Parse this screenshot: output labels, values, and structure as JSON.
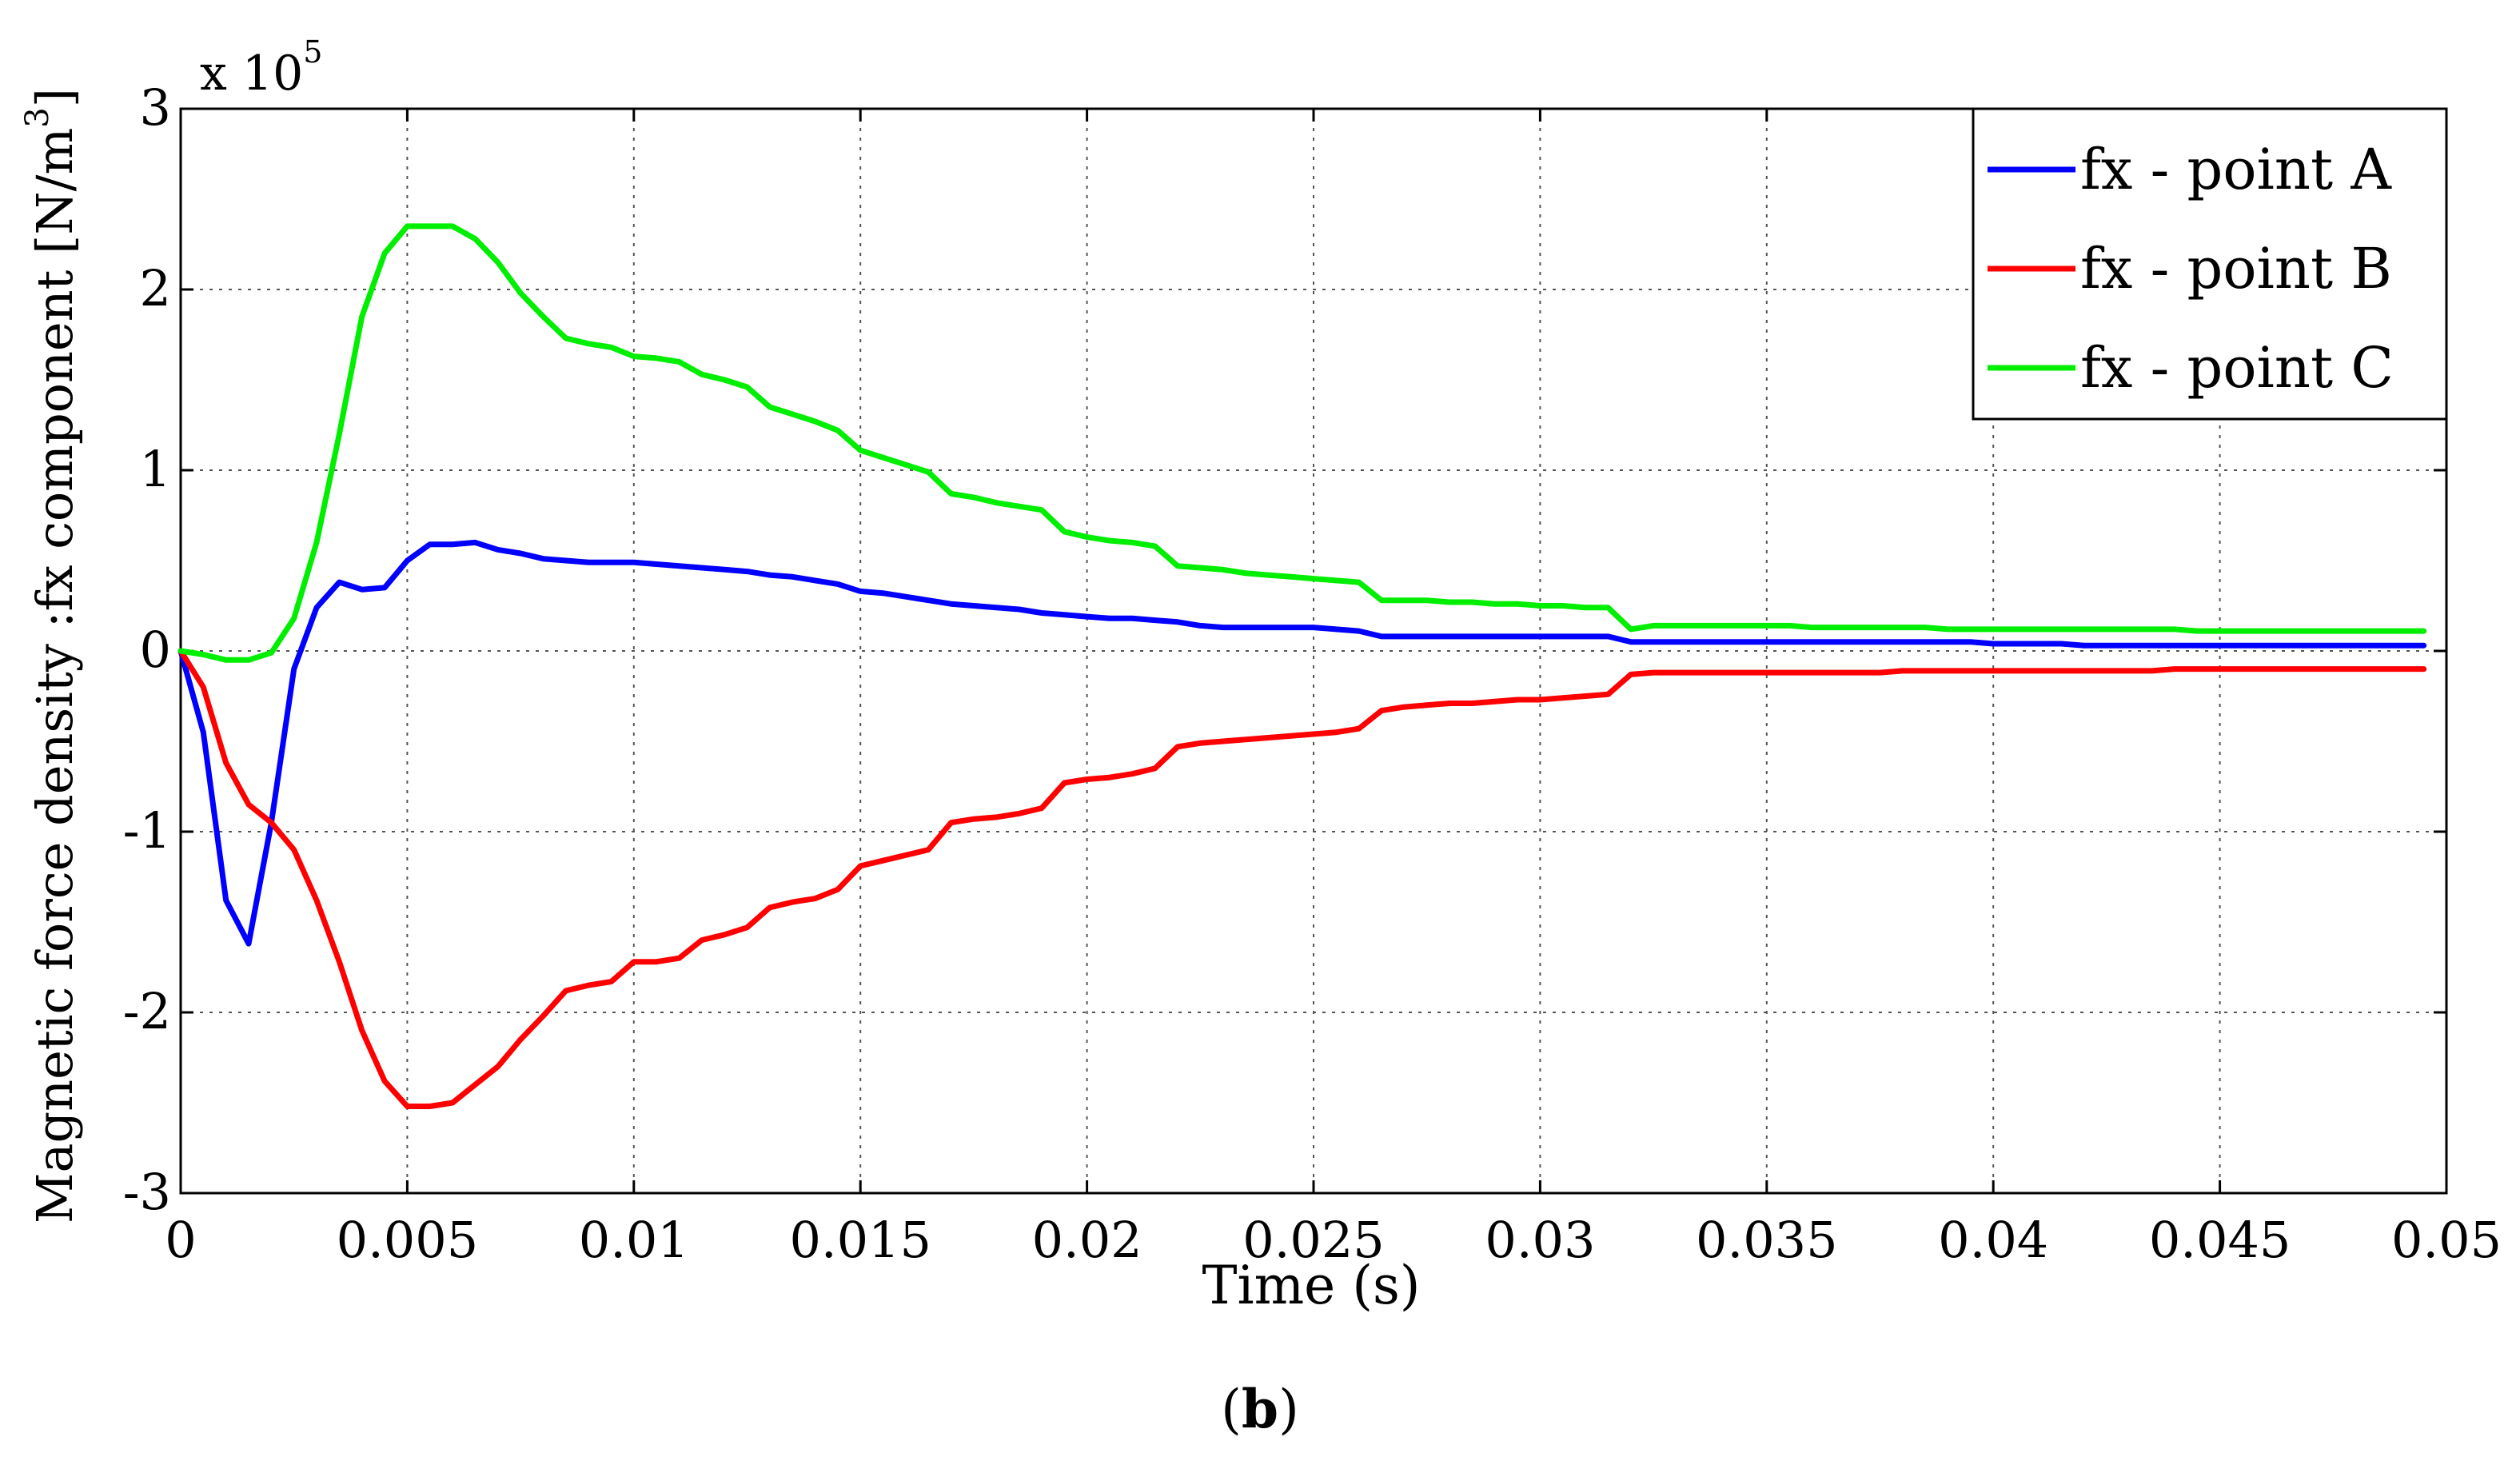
{
  "caption": {
    "prefix": "(",
    "letter": "b",
    "suffix": ")"
  },
  "chart_data": {
    "type": "line",
    "title": "",
    "xlabel": "Time (s)",
    "ylabel": "Magnetic force density :fx component [N/m",
    "ylabel_superscript": "3",
    "ylabel_suffix": "]",
    "xlim": [
      0,
      0.05
    ],
    "ylim": [
      -3,
      3
    ],
    "y_multiplier": {
      "base": "x 10",
      "exponent": "5"
    },
    "x_ticks": [
      0,
      0.005,
      0.01,
      0.015,
      0.02,
      0.025,
      0.03,
      0.035,
      0.04,
      0.045,
      0.05
    ],
    "x_tick_labels": [
      "0",
      "0.005",
      "0.01",
      "0.015",
      "0.02",
      "0.025",
      "0.03",
      "0.035",
      "0.04",
      "0.045",
      "0.05"
    ],
    "y_ticks": [
      -3,
      -2,
      -1,
      0,
      1,
      2,
      3
    ],
    "y_tick_labels": [
      "-3",
      "-2",
      "-1",
      "0",
      "1",
      "2",
      "3"
    ],
    "grid": true,
    "legend_position": "top-right",
    "series": [
      {
        "name": "fx - point A",
        "color": "#0000ff",
        "x": [
          0,
          0.0005,
          0.001,
          0.0015,
          0.002,
          0.0025,
          0.003,
          0.0035,
          0.004,
          0.0045,
          0.005,
          0.0055,
          0.006,
          0.0065,
          0.007,
          0.0075,
          0.008,
          0.0085,
          0.009,
          0.0095,
          0.01,
          0.0105,
          0.011,
          0.0115,
          0.012,
          0.0125,
          0.013,
          0.0135,
          0.014,
          0.0145,
          0.015,
          0.0155,
          0.016,
          0.0165,
          0.017,
          0.0175,
          0.018,
          0.0185,
          0.019,
          0.0195,
          0.02,
          0.0205,
          0.021,
          0.0215,
          0.022,
          0.0225,
          0.023,
          0.0235,
          0.024,
          0.0245,
          0.025,
          0.0255,
          0.026,
          0.0265,
          0.027,
          0.0275,
          0.028,
          0.0285,
          0.029,
          0.0295,
          0.03,
          0.0305,
          0.031,
          0.0315,
          0.032,
          0.0325,
          0.033,
          0.0335,
          0.034,
          0.0345,
          0.035,
          0.0355,
          0.036,
          0.0365,
          0.037,
          0.0375,
          0.038,
          0.0385,
          0.039,
          0.0395,
          0.04,
          0.0405,
          0.041,
          0.0415,
          0.042,
          0.0425,
          0.043,
          0.0435,
          0.044,
          0.0445,
          0.045,
          0.0455,
          0.046,
          0.0465,
          0.047,
          0.0475,
          0.048,
          0.0485,
          0.049,
          0.0495
        ],
        "y": [
          0,
          -0.45,
          -1.38,
          -1.62,
          -0.95,
          -0.1,
          0.24,
          0.38,
          0.34,
          0.35,
          0.5,
          0.59,
          0.59,
          0.6,
          0.56,
          0.54,
          0.51,
          0.5,
          0.49,
          0.49,
          0.49,
          0.48,
          0.47,
          0.46,
          0.45,
          0.44,
          0.42,
          0.41,
          0.39,
          0.37,
          0.33,
          0.32,
          0.3,
          0.28,
          0.26,
          0.25,
          0.24,
          0.23,
          0.21,
          0.2,
          0.19,
          0.18,
          0.18,
          0.17,
          0.16,
          0.14,
          0.13,
          0.13,
          0.13,
          0.13,
          0.13,
          0.12,
          0.11,
          0.08,
          0.08,
          0.08,
          0.08,
          0.08,
          0.08,
          0.08,
          0.08,
          0.08,
          0.08,
          0.08,
          0.05,
          0.05,
          0.05,
          0.05,
          0.05,
          0.05,
          0.05,
          0.05,
          0.05,
          0.05,
          0.05,
          0.05,
          0.05,
          0.05,
          0.05,
          0.05,
          0.04,
          0.04,
          0.04,
          0.04,
          0.03,
          0.03,
          0.03,
          0.03,
          0.03,
          0.03,
          0.03,
          0.03,
          0.03,
          0.03,
          0.03,
          0.03,
          0.03,
          0.03,
          0.03,
          0.03
        ]
      },
      {
        "name": "fx - point B",
        "color": "#ff0000",
        "x": [
          0,
          0.0005,
          0.001,
          0.0015,
          0.002,
          0.0025,
          0.003,
          0.0035,
          0.004,
          0.0045,
          0.005,
          0.0055,
          0.006,
          0.0065,
          0.007,
          0.0075,
          0.008,
          0.0085,
          0.009,
          0.0095,
          0.01,
          0.0105,
          0.011,
          0.0115,
          0.012,
          0.0125,
          0.013,
          0.0135,
          0.014,
          0.0145,
          0.015,
          0.0155,
          0.016,
          0.0165,
          0.017,
          0.0175,
          0.018,
          0.0185,
          0.019,
          0.0195,
          0.02,
          0.0205,
          0.021,
          0.0215,
          0.022,
          0.0225,
          0.023,
          0.0235,
          0.024,
          0.0245,
          0.025,
          0.0255,
          0.026,
          0.0265,
          0.027,
          0.0275,
          0.028,
          0.0285,
          0.029,
          0.0295,
          0.03,
          0.0305,
          0.031,
          0.0315,
          0.032,
          0.0325,
          0.033,
          0.0335,
          0.034,
          0.0345,
          0.035,
          0.0355,
          0.036,
          0.0365,
          0.037,
          0.0375,
          0.038,
          0.0385,
          0.039,
          0.0395,
          0.04,
          0.0405,
          0.041,
          0.0415,
          0.042,
          0.0425,
          0.043,
          0.0435,
          0.044,
          0.0445,
          0.045,
          0.0455,
          0.046,
          0.0465,
          0.047,
          0.0475,
          0.048,
          0.0485,
          0.049,
          0.0495
        ],
        "y": [
          0,
          -0.2,
          -0.62,
          -0.85,
          -0.95,
          -1.1,
          -1.38,
          -1.72,
          -2.1,
          -2.38,
          -2.52,
          -2.52,
          -2.5,
          -2.4,
          -2.3,
          -2.15,
          -2.02,
          -1.88,
          -1.85,
          -1.83,
          -1.72,
          -1.72,
          -1.7,
          -1.6,
          -1.57,
          -1.53,
          -1.42,
          -1.39,
          -1.37,
          -1.32,
          -1.19,
          -1.16,
          -1.13,
          -1.1,
          -0.95,
          -0.93,
          -0.92,
          -0.9,
          -0.87,
          -0.73,
          -0.71,
          -0.7,
          -0.68,
          -0.65,
          -0.53,
          -0.51,
          -0.5,
          -0.49,
          -0.48,
          -0.47,
          -0.46,
          -0.45,
          -0.43,
          -0.33,
          -0.31,
          -0.3,
          -0.29,
          -0.29,
          -0.28,
          -0.27,
          -0.27,
          -0.26,
          -0.25,
          -0.24,
          -0.13,
          -0.12,
          -0.12,
          -0.12,
          -0.12,
          -0.12,
          -0.12,
          -0.12,
          -0.12,
          -0.12,
          -0.12,
          -0.12,
          -0.11,
          -0.11,
          -0.11,
          -0.11,
          -0.11,
          -0.11,
          -0.11,
          -0.11,
          -0.11,
          -0.11,
          -0.11,
          -0.11,
          -0.1,
          -0.1,
          -0.1,
          -0.1,
          -0.1,
          -0.1,
          -0.1,
          -0.1,
          -0.1,
          -0.1,
          -0.1,
          -0.1
        ]
      },
      {
        "name": "fx - point C",
        "color": "#00ee00",
        "x": [
          0,
          0.0005,
          0.001,
          0.0015,
          0.002,
          0.0025,
          0.003,
          0.0035,
          0.004,
          0.0045,
          0.005,
          0.0055,
          0.006,
          0.0065,
          0.007,
          0.0075,
          0.008,
          0.0085,
          0.009,
          0.0095,
          0.01,
          0.0105,
          0.011,
          0.0115,
          0.012,
          0.0125,
          0.013,
          0.0135,
          0.014,
          0.0145,
          0.015,
          0.0155,
          0.016,
          0.0165,
          0.017,
          0.0175,
          0.018,
          0.0185,
          0.019,
          0.0195,
          0.02,
          0.0205,
          0.021,
          0.0215,
          0.022,
          0.0225,
          0.023,
          0.0235,
          0.024,
          0.0245,
          0.025,
          0.0255,
          0.026,
          0.0265,
          0.027,
          0.0275,
          0.028,
          0.0285,
          0.029,
          0.0295,
          0.03,
          0.0305,
          0.031,
          0.0315,
          0.032,
          0.0325,
          0.033,
          0.0335,
          0.034,
          0.0345,
          0.035,
          0.0355,
          0.036,
          0.0365,
          0.037,
          0.0375,
          0.038,
          0.0385,
          0.039,
          0.0395,
          0.04,
          0.0405,
          0.041,
          0.0415,
          0.042,
          0.0425,
          0.043,
          0.0435,
          0.044,
          0.0445,
          0.045,
          0.0455,
          0.046,
          0.0465,
          0.047,
          0.0475,
          0.048,
          0.0485,
          0.049,
          0.0495
        ],
        "y": [
          0,
          -0.02,
          -0.05,
          -0.05,
          -0.01,
          0.18,
          0.6,
          1.2,
          1.85,
          2.2,
          2.35,
          2.35,
          2.35,
          2.28,
          2.15,
          1.98,
          1.85,
          1.73,
          1.7,
          1.68,
          1.63,
          1.62,
          1.6,
          1.53,
          1.5,
          1.46,
          1.35,
          1.31,
          1.27,
          1.22,
          1.11,
          1.07,
          1.03,
          0.99,
          0.87,
          0.85,
          0.82,
          0.8,
          0.78,
          0.66,
          0.63,
          0.61,
          0.6,
          0.58,
          0.47,
          0.46,
          0.45,
          0.43,
          0.42,
          0.41,
          0.4,
          0.39,
          0.38,
          0.28,
          0.28,
          0.28,
          0.27,
          0.27,
          0.26,
          0.26,
          0.25,
          0.25,
          0.24,
          0.24,
          0.12,
          0.14,
          0.14,
          0.14,
          0.14,
          0.14,
          0.14,
          0.14,
          0.13,
          0.13,
          0.13,
          0.13,
          0.13,
          0.13,
          0.12,
          0.12,
          0.12,
          0.12,
          0.12,
          0.12,
          0.12,
          0.12,
          0.12,
          0.12,
          0.12,
          0.11,
          0.11,
          0.11,
          0.11,
          0.11,
          0.11,
          0.11,
          0.11,
          0.11,
          0.11,
          0.11
        ]
      }
    ]
  }
}
